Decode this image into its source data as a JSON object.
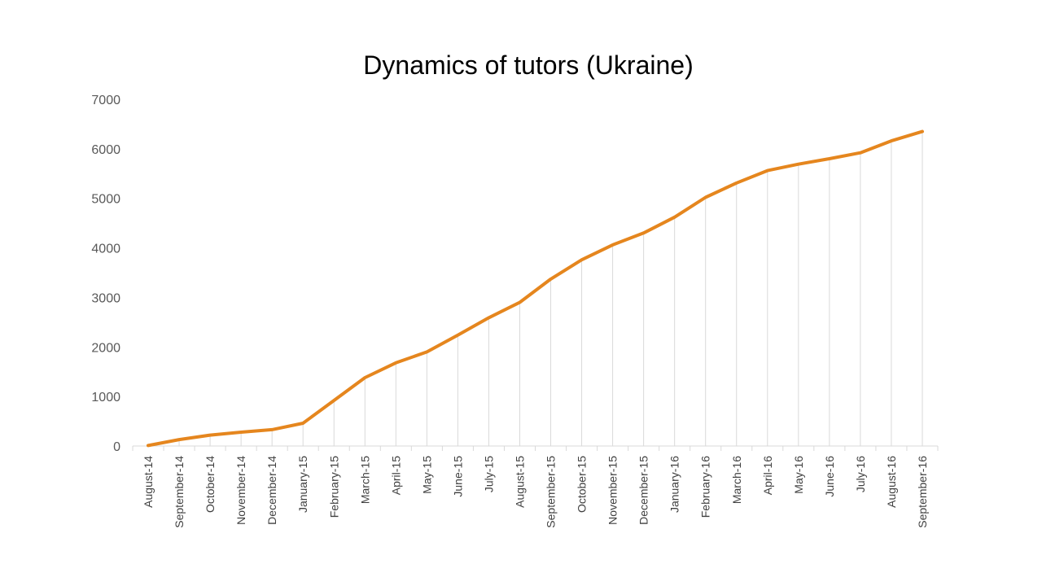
{
  "chart_data": {
    "type": "line",
    "title": "Dynamics of tutors (Ukraine)",
    "xlabel": "",
    "ylabel": "",
    "ylim": [
      0,
      7000
    ],
    "yticks": [
      0,
      1000,
      2000,
      3000,
      4000,
      5000,
      6000,
      7000
    ],
    "grid": "vertical",
    "legend": "none",
    "colors": {
      "line": "#E5861E",
      "grid": "#D9D9D9",
      "axis": "#D9D9D9"
    },
    "categories": [
      "August-14",
      "September-14",
      "October-14",
      "November-14",
      "December-14",
      "January-15",
      "February-15",
      "March-15",
      "April-15",
      "May-15",
      "June-15",
      "July-15",
      "August-15",
      "September-15",
      "October-15",
      "November-15",
      "December-15",
      "January-16",
      "February-16",
      "March-16",
      "April-16",
      "May-16",
      "June-16",
      "July-16",
      "August-16",
      "September-16"
    ],
    "series": [
      {
        "values": [
          10,
          130,
          220,
          280,
          330,
          460,
          920,
          1380,
          1680,
          1900,
          2240,
          2590,
          2900,
          3370,
          3760,
          4060,
          4300,
          4620,
          5020,
          5310,
          5560,
          5690,
          5800,
          5920,
          6160,
          6350
        ]
      }
    ]
  }
}
